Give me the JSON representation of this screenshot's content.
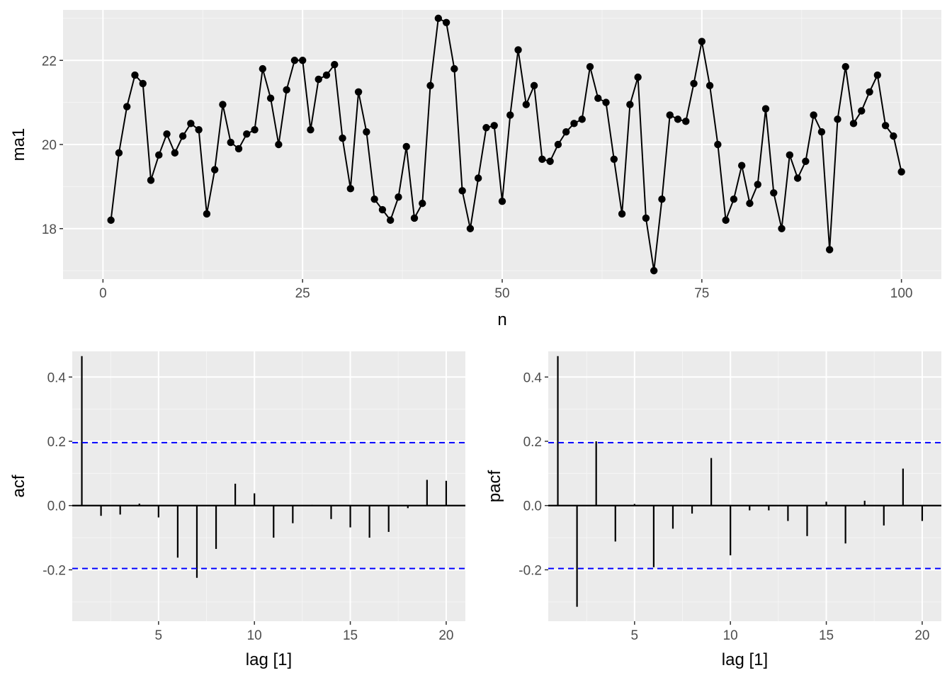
{
  "colors": {
    "panel_background": "#ebebeb",
    "major_grid": "#ffffff",
    "minor_grid": "#f5f5f5",
    "series_line": "#000000",
    "confidence_band": "#0000ff",
    "tick_text": "#4d4d4d"
  },
  "chart_data": [
    {
      "id": "time-series",
      "type": "line",
      "markers": true,
      "xlabel": "n",
      "ylabel": "ma1",
      "xlim": [
        -5,
        105
      ],
      "ylim": [
        16.8,
        23.2
      ],
      "xticks": [
        0,
        25,
        50,
        75,
        100
      ],
      "yticks": [
        18,
        20,
        22
      ],
      "grid": true,
      "x": [
        1,
        2,
        3,
        4,
        5,
        6,
        7,
        8,
        9,
        10,
        11,
        12,
        13,
        14,
        15,
        16,
        17,
        18,
        19,
        20,
        21,
        22,
        23,
        24,
        25,
        26,
        27,
        28,
        29,
        30,
        31,
        32,
        33,
        34,
        35,
        36,
        37,
        38,
        39,
        40,
        41,
        42,
        43,
        44,
        45,
        46,
        47,
        48,
        49,
        50,
        51,
        52,
        53,
        54,
        55,
        56,
        57,
        58,
        59,
        60,
        61,
        62,
        63,
        64,
        65,
        66,
        67,
        68,
        69,
        70,
        71,
        72,
        73,
        74,
        75,
        76,
        77,
        78,
        79,
        80,
        81,
        82,
        83,
        84,
        85,
        86,
        87,
        88,
        89,
        90,
        91,
        92,
        93,
        94,
        95,
        96,
        97,
        98,
        99,
        100
      ],
      "y": [
        18.2,
        19.8,
        20.9,
        21.65,
        21.45,
        19.15,
        19.75,
        20.25,
        19.8,
        20.2,
        20.5,
        20.35,
        18.35,
        19.4,
        20.95,
        20.05,
        19.9,
        20.25,
        20.35,
        21.8,
        21.1,
        20.0,
        21.3,
        22.0,
        22.0,
        20.35,
        21.55,
        21.65,
        21.9,
        20.15,
        18.95,
        21.25,
        20.3,
        18.7,
        18.45,
        18.2,
        18.75,
        19.95,
        18.25,
        18.6,
        21.4,
        23.0,
        22.9,
        21.8,
        18.9,
        18.0,
        19.2,
        20.4,
        20.45,
        18.65,
        20.7,
        22.25,
        20.95,
        21.4,
        19.65,
        19.6,
        20.0,
        20.3,
        20.5,
        20.6,
        21.85,
        21.1,
        21.0,
        19.65,
        18.35,
        20.95,
        21.6,
        18.25,
        17.0,
        18.7,
        20.7,
        20.6,
        20.55,
        21.45,
        22.45,
        21.4,
        20.0,
        18.2,
        18.7,
        19.5,
        18.6,
        19.05,
        20.85,
        18.85,
        18.0,
        19.75,
        19.2,
        19.6,
        20.7,
        20.3,
        17.5,
        20.6,
        21.85,
        20.5,
        20.8,
        21.25,
        21.65,
        20.45,
        20.2,
        19.35
      ]
    },
    {
      "id": "acf",
      "type": "bar",
      "xlabel": "lag [1]",
      "ylabel": "acf",
      "xlim": [
        0.5,
        21
      ],
      "ylim": [
        -0.36,
        0.48
      ],
      "xticks": [
        5,
        10,
        15,
        20
      ],
      "yticks": [
        -0.2,
        0.0,
        0.2,
        0.4
      ],
      "ytick_labels": [
        "-0.2",
        "0.0",
        "0.2",
        "0.4"
      ],
      "grid": true,
      "confidence_bounds": [
        -0.196,
        0.196
      ],
      "lags": [
        1,
        2,
        3,
        4,
        5,
        6,
        7,
        8,
        9,
        10,
        11,
        12,
        13,
        14,
        15,
        16,
        17,
        18,
        19,
        20
      ],
      "values": [
        0.465,
        -0.032,
        -0.028,
        0.006,
        -0.037,
        -0.162,
        -0.225,
        -0.135,
        0.068,
        0.038,
        -0.1,
        -0.055,
        0.002,
        -0.042,
        -0.068,
        -0.1,
        -0.082,
        -0.008,
        0.08,
        0.077
      ]
    },
    {
      "id": "pacf",
      "type": "bar",
      "xlabel": "lag [1]",
      "ylabel": "pacf",
      "xlim": [
        0.5,
        21
      ],
      "ylim": [
        -0.36,
        0.48
      ],
      "xticks": [
        5,
        10,
        15,
        20
      ],
      "yticks": [
        -0.2,
        0.0,
        0.2,
        0.4
      ],
      "ytick_labels": [
        "-0.2",
        "0.0",
        "0.2",
        "0.4"
      ],
      "grid": true,
      "confidence_bounds": [
        -0.196,
        0.196
      ],
      "lags": [
        1,
        2,
        3,
        4,
        5,
        6,
        7,
        8,
        9,
        10,
        11,
        12,
        13,
        14,
        15,
        16,
        17,
        18,
        19,
        20
      ],
      "values": [
        0.465,
        -0.315,
        0.2,
        -0.112,
        0.005,
        -0.192,
        -0.072,
        -0.025,
        0.148,
        -0.155,
        -0.015,
        -0.015,
        -0.048,
        -0.095,
        0.012,
        -0.118,
        0.015,
        -0.062,
        0.115,
        -0.048
      ]
    }
  ]
}
